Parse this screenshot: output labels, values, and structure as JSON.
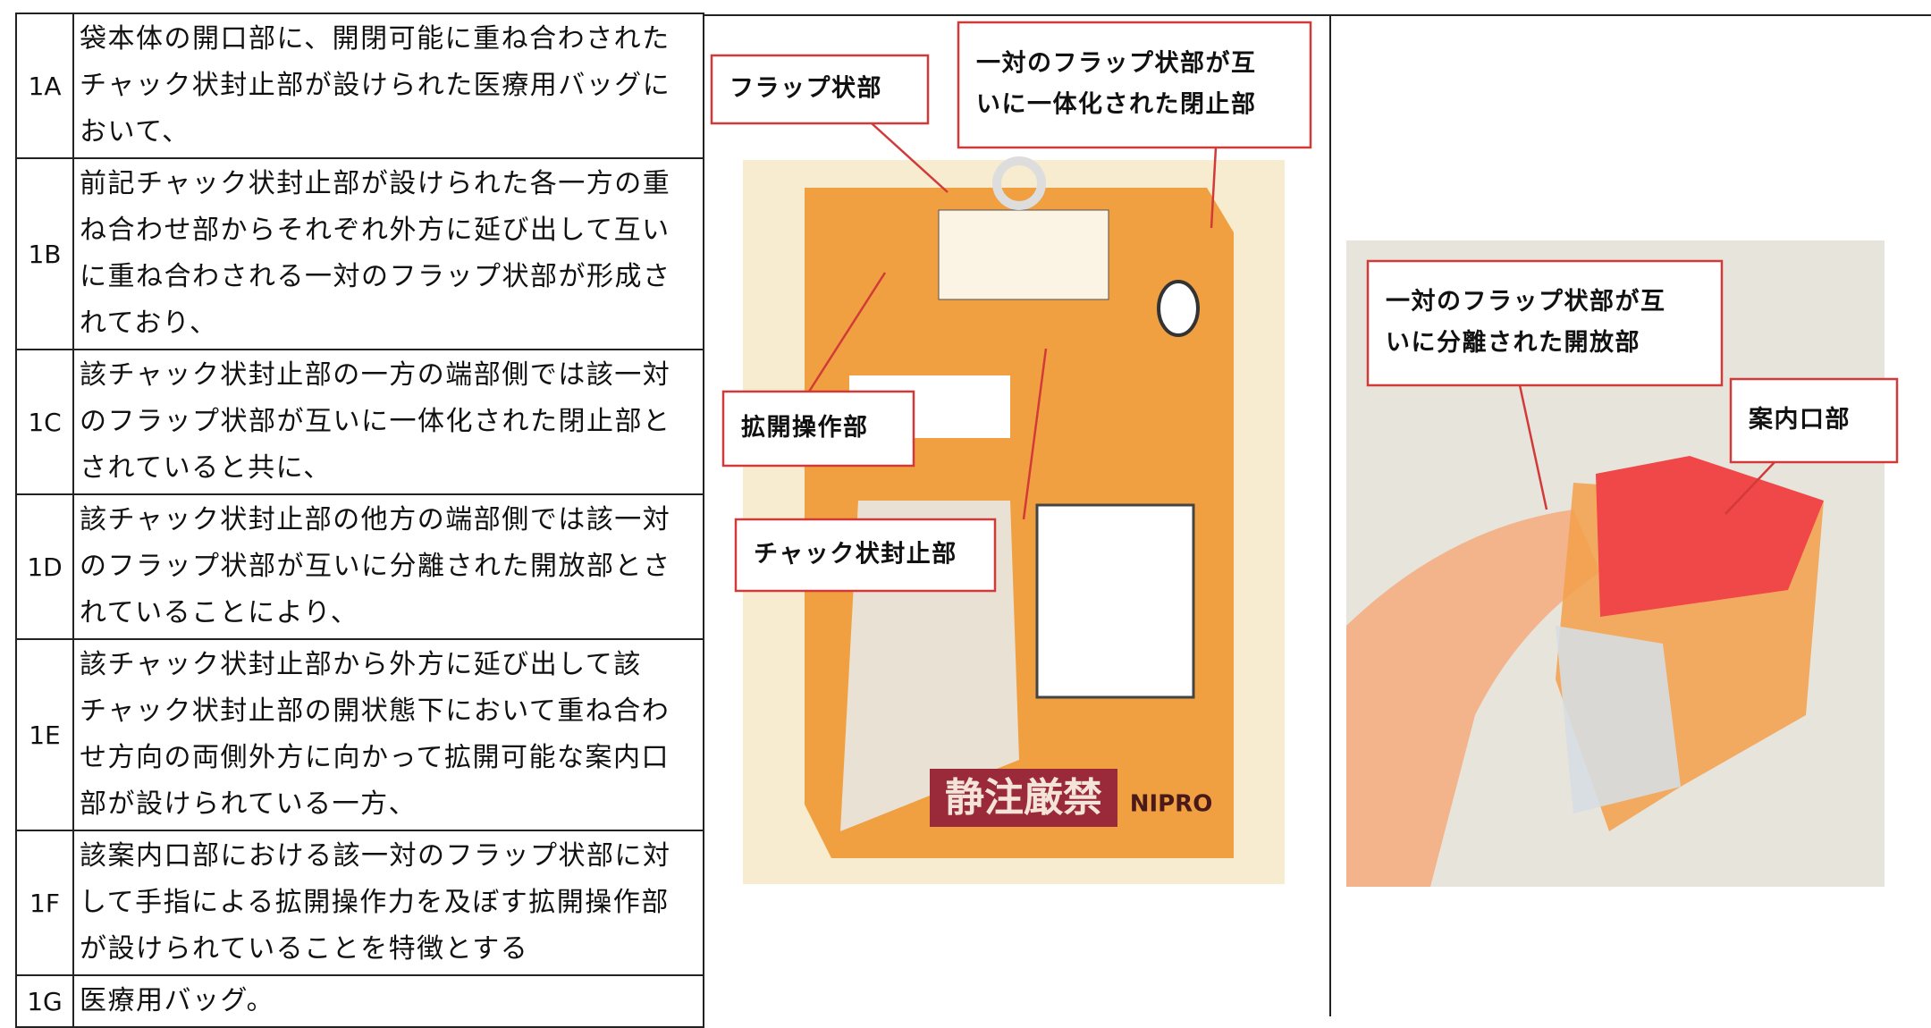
{
  "claims": [
    {
      "id": "1A",
      "lines": [
        "袋本体の開口部に、開閉可能に重ね合わされた",
        "チャック状封止部が設けられた医療用バッグに",
        "おいて、"
      ]
    },
    {
      "id": "1B",
      "lines": [
        "前記チャック状封止部が設けられた各一方の重",
        "ね合わせ部からそれぞれ外方に延び出して互い",
        "に重ね合わされる一対のフラップ状部が形成さ",
        "れており、"
      ]
    },
    {
      "id": "1C",
      "lines": [
        "該チャック状封止部の一方の端部側では該一対",
        "のフラップ状部が互いに一体化された閉止部と",
        "されていると共に、"
      ]
    },
    {
      "id": "1D",
      "lines": [
        "該チャック状封止部の他方の端部側では該一対",
        "のフラップ状部が互いに分離された開放部とさ",
        "れていることにより、"
      ]
    },
    {
      "id": "1E",
      "lines": [
        "該チャック状封止部から外方に延び出して該",
        "チャック状封止部の開状態下において重ね合わ",
        "せ方向の両側外方に向かって拡開可能な案内口",
        "部が設けられている一方、"
      ]
    },
    {
      "id": "1F",
      "lines": [
        "該案内口部における該一対のフラップ状部に対",
        "して手指による拡開操作力を及ぼす拡開操作部",
        "が設けられていることを特徴とする"
      ]
    },
    {
      "id": "1G",
      "lines": [
        "医療用バッグ。"
      ]
    }
  ],
  "figure_left": {
    "labels": [
      {
        "lines": [
          "フラップ状部"
        ]
      },
      {
        "lines": [
          "一対のフラップ状部が互",
          "いに一体化された閉止部"
        ]
      },
      {
        "lines": [
          "拡開操作部"
        ]
      },
      {
        "lines": [
          "チャック状封止部"
        ]
      }
    ],
    "bag_text": [
      "静注厳禁",
      "NIPRO"
    ]
  },
  "figure_right": {
    "labels": [
      {
        "lines": [
          "一対のフラップ状部が互",
          "いに分離された開放部"
        ]
      },
      {
        "lines": [
          "案内口部"
        ]
      }
    ]
  }
}
